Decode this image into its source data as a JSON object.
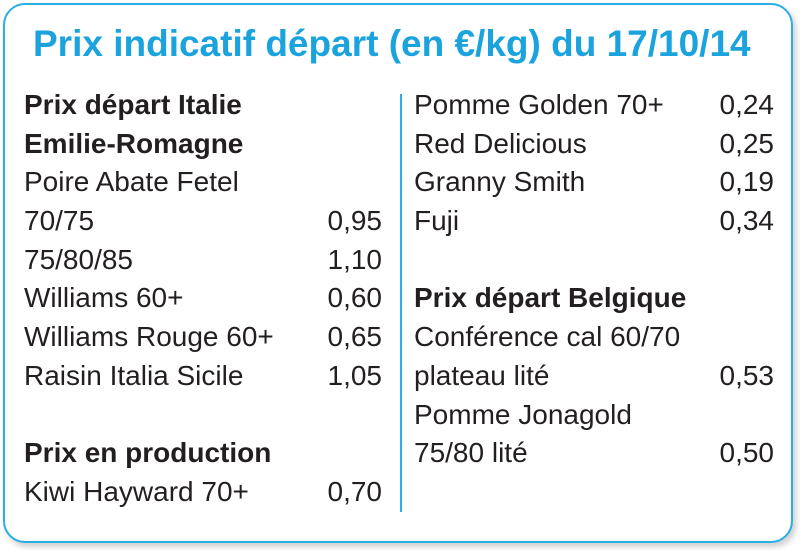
{
  "title": "Prix indicatif départ (en €/kg) du 17/10/14",
  "left": {
    "italie_head1": "Prix départ Italie",
    "italie_head2": "Emilie-Romagne",
    "poire_label": "Poire Abate Fetel",
    "rows": [
      {
        "label": "70/75",
        "value": "0,95"
      },
      {
        "label": "75/80/85",
        "value": "1,10"
      },
      {
        "label": "Williams 60+",
        "value": "0,60"
      },
      {
        "label": "Williams Rouge 60+",
        "value": "0,65"
      },
      {
        "label": "Raisin Italia Sicile",
        "value": "1,05"
      }
    ],
    "production_head": "Prix en production",
    "production_rows": [
      {
        "label": "Kiwi Hayward 70+",
        "value": "0,70"
      }
    ]
  },
  "right": {
    "rows": [
      {
        "label": "Pomme Golden 70+",
        "value": "0,24"
      },
      {
        "label": "Red Delicious",
        "value": "0,25"
      },
      {
        "label": "Granny Smith",
        "value": "0,19"
      },
      {
        "label": "Fuji",
        "value": "0,34"
      }
    ],
    "belgique_head": "Prix départ Belgique",
    "conference_label": "Conférence cal 60/70",
    "conference_row": {
      "label": "plateau lité",
      "value": "0,53"
    },
    "jonagold_label": "Pomme Jonagold",
    "jonagold_row": {
      "label": "75/80 lité",
      "value": "0,50"
    }
  },
  "colors": {
    "accent": "#1ba3dd",
    "border": "#2aaee3",
    "text": "#231f20"
  }
}
